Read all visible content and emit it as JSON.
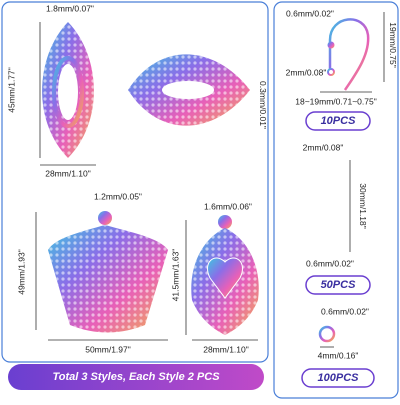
{
  "left": {
    "style_1": {
      "hole": "1.8mm/0.07\"",
      "height": "45mm/1.77\"",
      "thickness": "0.3mm/0.01\"",
      "width": "28mm/1.10\""
    },
    "style_2": {
      "hole": "1.2mm/0.05\"",
      "height": "49mm/1.93\"",
      "width": "50mm/1.97\""
    },
    "style_3": {
      "hole": "1.6mm/0.06\"",
      "height": "41.5mm/1.63\"",
      "width": "28mm/1.10\""
    },
    "banner": "Total 3 Styles, Each Style 2 PCS"
  },
  "right": {
    "hook": {
      "wire": "0.6mm/0.02\"",
      "ball": "2mm/0.08\"",
      "height": "19mm/0.75\"",
      "width": "18~19mm/0.71~0.75\"",
      "count": "10PCS"
    },
    "pin": {
      "head": "2mm/0.08\"",
      "length": "30mm/1.18\"",
      "wire": "0.6mm/0.02\"",
      "count": "50PCS"
    },
    "ring": {
      "wire": "0.6mm/0.02\"",
      "diameter": "4mm/0.16\"",
      "count": "100PCS"
    }
  }
}
